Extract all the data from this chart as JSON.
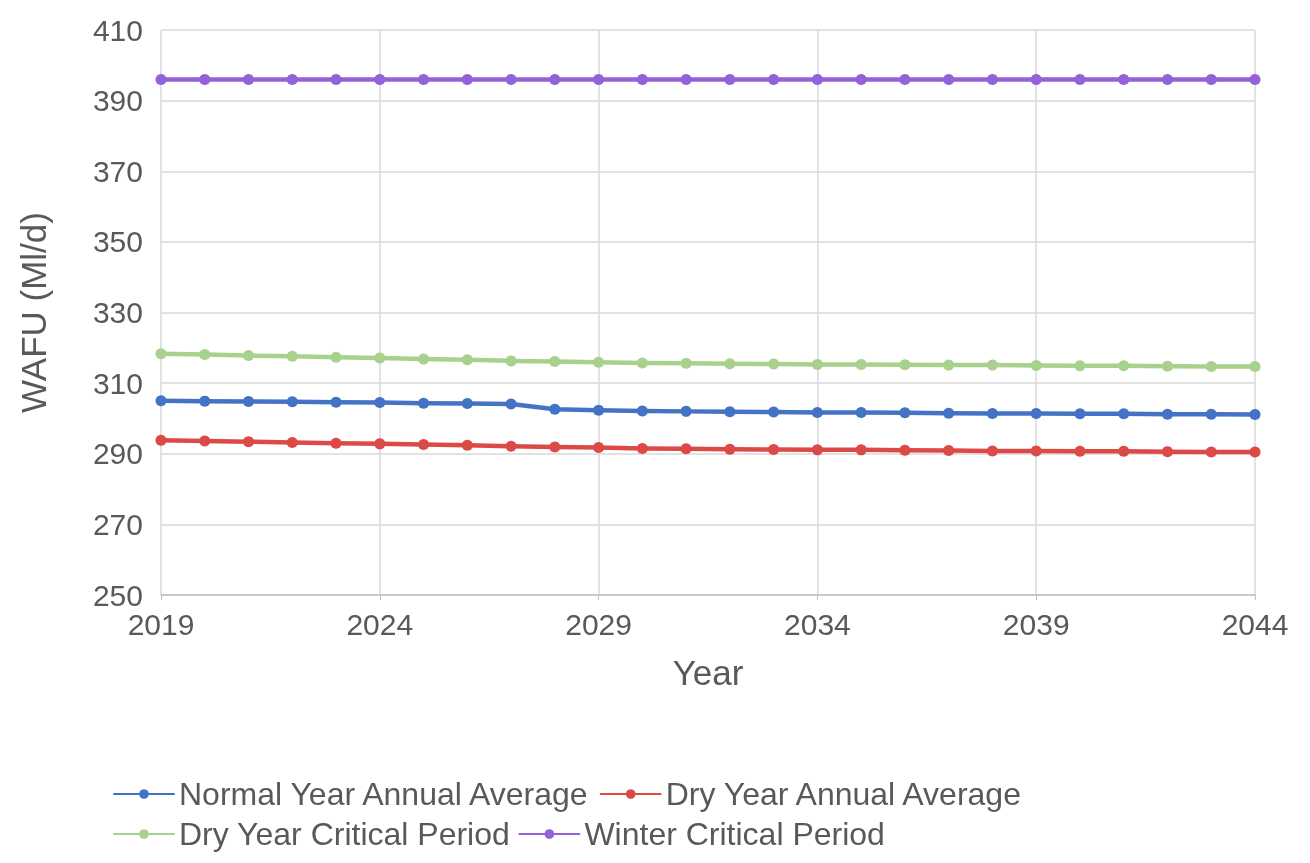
{
  "chart_data": {
    "type": "line",
    "xlabel": "Year",
    "ylabel": "WAFU (Ml/d)",
    "x": [
      2019,
      2020,
      2021,
      2022,
      2023,
      2024,
      2025,
      2026,
      2027,
      2028,
      2029,
      2030,
      2031,
      2032,
      2033,
      2034,
      2035,
      2036,
      2037,
      2038,
      2039,
      2040,
      2041,
      2042,
      2043,
      2044
    ],
    "series": [
      {
        "name": "Normal Year Annual Average",
        "color": "#4472c4",
        "values": [
          305.0,
          304.9,
          304.8,
          304.7,
          304.6,
          304.5,
          304.3,
          304.2,
          304.1,
          302.6,
          302.3,
          302.1,
          302.0,
          301.9,
          301.8,
          301.7,
          301.7,
          301.6,
          301.5,
          301.4,
          301.4,
          301.3,
          301.3,
          301.2,
          301.2,
          301.1
        ]
      },
      {
        "name": "Dry Year Annual Average",
        "color": "#db4a47",
        "values": [
          293.8,
          293.6,
          293.4,
          293.2,
          293.0,
          292.8,
          292.6,
          292.4,
          292.1,
          291.9,
          291.8,
          291.5,
          291.4,
          291.3,
          291.2,
          291.1,
          291.1,
          291.0,
          290.9,
          290.8,
          290.8,
          290.7,
          290.7,
          290.6,
          290.5,
          290.5
        ]
      },
      {
        "name": "Dry Year Critical Period",
        "color": "#a9d18e",
        "values": [
          318.3,
          318.1,
          317.8,
          317.6,
          317.3,
          317.1,
          316.8,
          316.6,
          316.3,
          316.1,
          315.9,
          315.7,
          315.6,
          315.5,
          315.4,
          315.3,
          315.3,
          315.2,
          315.1,
          315.1,
          315.0,
          314.9,
          314.9,
          314.8,
          314.7,
          314.7
        ]
      },
      {
        "name": "Winter Critical Period",
        "color": "#9361d8",
        "values": [
          396,
          396,
          396,
          396,
          396,
          396,
          396,
          396,
          396,
          396,
          396,
          396,
          396,
          396,
          396,
          396,
          396,
          396,
          396,
          396,
          396,
          396,
          396,
          396,
          396,
          396
        ]
      }
    ],
    "xlim": [
      2019,
      2044
    ],
    "xticks": [
      2019,
      2024,
      2029,
      2034,
      2039,
      2044
    ],
    "ylim": [
      250,
      410
    ],
    "yticks": [
      250,
      270,
      290,
      310,
      330,
      350,
      370,
      390,
      410
    ],
    "grid": true,
    "legend": "bottom",
    "marker": "circle",
    "line_style": "solid"
  }
}
